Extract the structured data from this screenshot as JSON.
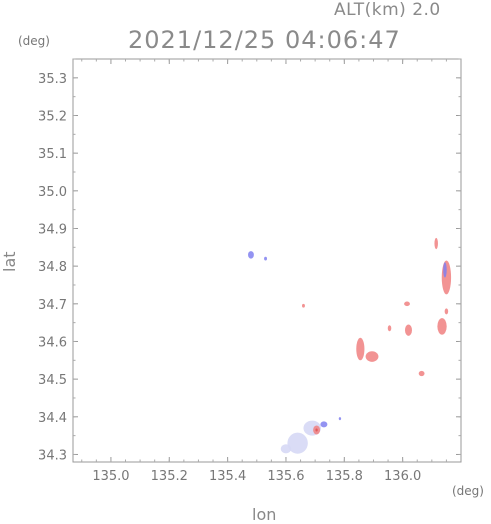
{
  "header": {
    "altitude_label": "ALT(km) 2.0",
    "datetime": "2021/12/25 04:06:47"
  },
  "units": {
    "y": "(deg)",
    "x": "(deg)"
  },
  "chart_data": {
    "type": "scatter",
    "title": "",
    "xlabel": "lon",
    "ylabel": "lat",
    "xlim": [
      134.87,
      136.2
    ],
    "ylim": [
      34.28,
      35.35
    ],
    "x_ticks": [
      135.0,
      135.2,
      135.4,
      135.6,
      135.8,
      136.0
    ],
    "x_tick_labels": [
      "135.0",
      "135.2",
      "135.4",
      "135.6",
      "135.8",
      "136.0"
    ],
    "y_ticks": [
      34.3,
      34.4,
      34.5,
      34.6,
      34.7,
      34.8,
      34.9,
      35.0,
      35.1,
      35.2,
      35.3
    ],
    "y_tick_labels": [
      "34.3",
      "34.4",
      "34.5",
      "34.6",
      "34.7",
      "34.8",
      "34.9",
      "35.0",
      "35.1",
      "35.2",
      "35.3"
    ],
    "grid": false,
    "colors": {
      "positive": "#f08080",
      "negative": "#8080f0",
      "weak_negative": "#d6d8f5",
      "strong": "#e05050",
      "frame": "#999999"
    },
    "echo_regions": [
      {
        "lon": 135.48,
        "lat": 34.83,
        "rx": 0.01,
        "ry": 0.01,
        "color": "negative"
      },
      {
        "lon": 135.53,
        "lat": 34.82,
        "rx": 0.005,
        "ry": 0.005,
        "color": "negative"
      },
      {
        "lon": 135.66,
        "lat": 34.695,
        "rx": 0.005,
        "ry": 0.005,
        "color": "positive"
      },
      {
        "lon": 135.64,
        "lat": 34.33,
        "rx": 0.035,
        "ry": 0.028,
        "color": "weak_negative"
      },
      {
        "lon": 135.6,
        "lat": 34.315,
        "rx": 0.018,
        "ry": 0.012,
        "color": "weak_negative"
      },
      {
        "lon": 135.69,
        "lat": 34.37,
        "rx": 0.03,
        "ry": 0.02,
        "color": "weak_negative"
      },
      {
        "lon": 135.705,
        "lat": 34.365,
        "rx": 0.012,
        "ry": 0.012,
        "color": "positive"
      },
      {
        "lon": 135.705,
        "lat": 34.365,
        "rx": 0.004,
        "ry": 0.004,
        "color": "strong"
      },
      {
        "lon": 135.73,
        "lat": 34.38,
        "rx": 0.012,
        "ry": 0.008,
        "color": "negative"
      },
      {
        "lon": 135.785,
        "lat": 34.395,
        "rx": 0.004,
        "ry": 0.004,
        "color": "negative"
      },
      {
        "lon": 135.855,
        "lat": 34.58,
        "rx": 0.014,
        "ry": 0.03,
        "color": "positive"
      },
      {
        "lon": 135.895,
        "lat": 34.56,
        "rx": 0.022,
        "ry": 0.014,
        "color": "positive"
      },
      {
        "lon": 135.955,
        "lat": 34.635,
        "rx": 0.006,
        "ry": 0.008,
        "color": "positive"
      },
      {
        "lon": 136.015,
        "lat": 34.7,
        "rx": 0.01,
        "ry": 0.006,
        "color": "positive"
      },
      {
        "lon": 136.02,
        "lat": 34.63,
        "rx": 0.012,
        "ry": 0.015,
        "color": "positive"
      },
      {
        "lon": 136.065,
        "lat": 34.515,
        "rx": 0.01,
        "ry": 0.007,
        "color": "positive"
      },
      {
        "lon": 136.135,
        "lat": 34.64,
        "rx": 0.016,
        "ry": 0.022,
        "color": "positive"
      },
      {
        "lon": 136.15,
        "lat": 34.68,
        "rx": 0.006,
        "ry": 0.008,
        "color": "positive"
      },
      {
        "lon": 136.15,
        "lat": 34.77,
        "rx": 0.016,
        "ry": 0.045,
        "color": "positive"
      },
      {
        "lon": 136.145,
        "lat": 34.79,
        "rx": 0.006,
        "ry": 0.02,
        "color": "negative"
      },
      {
        "lon": 136.115,
        "lat": 34.86,
        "rx": 0.006,
        "ry": 0.015,
        "color": "positive"
      }
    ]
  }
}
